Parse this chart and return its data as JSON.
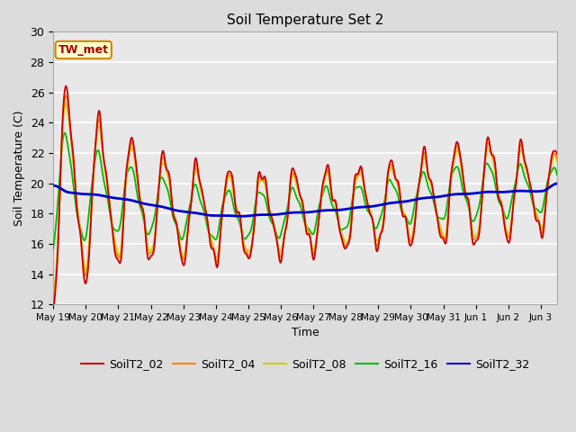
{
  "title": "Soil Temperature Set 2",
  "xlabel": "Time",
  "ylabel": "Soil Temperature (C)",
  "ylim": [
    12,
    30
  ],
  "annotation": "TW_met",
  "background_color": "#dcdcdc",
  "plot_bg_color": "#e8e8e8",
  "grid_color": "white",
  "colors": {
    "SoilT2_02": "#cc0000",
    "SoilT2_04": "#ff8800",
    "SoilT2_08": "#cccc00",
    "SoilT2_16": "#00bb00",
    "SoilT2_32": "#0000cc"
  },
  "xtick_labels": [
    "May 19",
    "May 20",
    "May 21",
    "May 22",
    "May 23",
    "May 24",
    "May 25",
    "May 26",
    "May 27",
    "May 28",
    "May 29",
    "May 30",
    "May 31",
    "Jun 1",
    "Jun 2",
    "Jun 3"
  ],
  "ytick_labels": [
    12,
    14,
    16,
    18,
    20,
    22,
    24,
    26,
    28,
    30
  ]
}
